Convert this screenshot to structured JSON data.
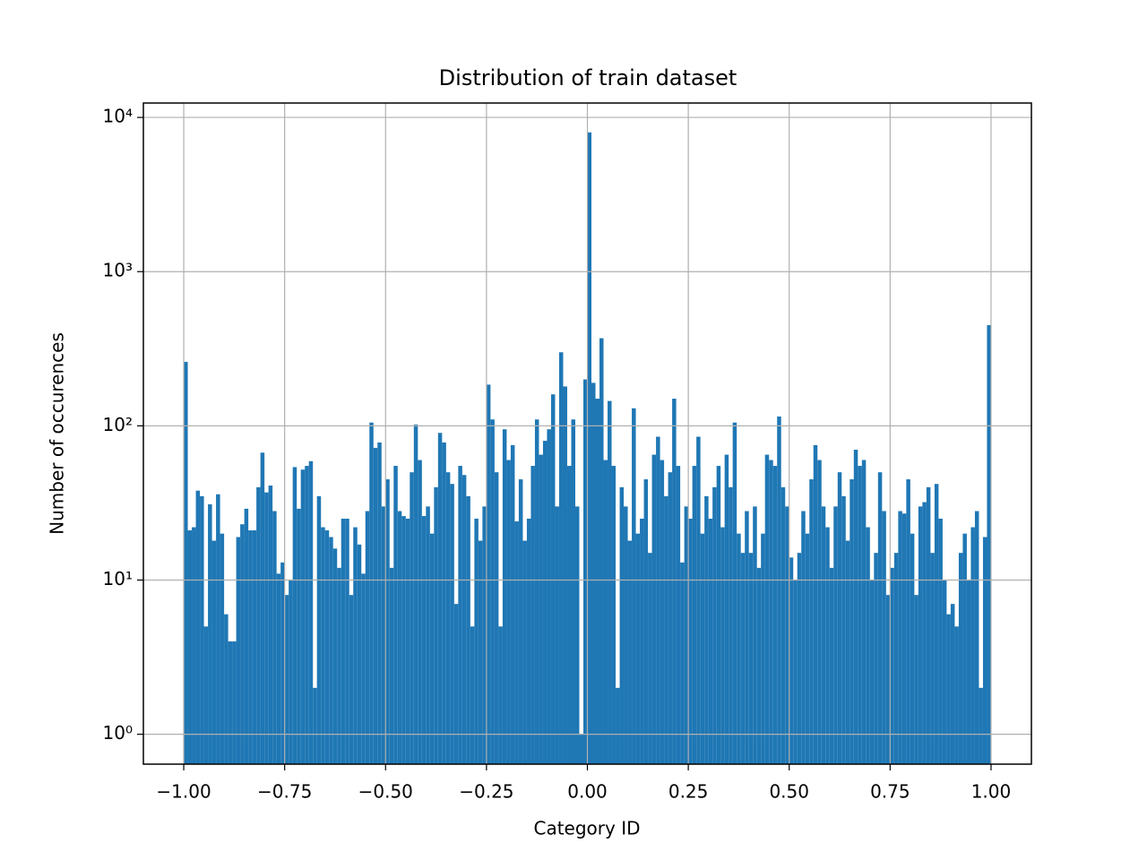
{
  "chart_data": {
    "type": "histogram",
    "title": "Distribution of train dataset",
    "xlabel": "Category ID",
    "ylabel": "Number of occurences",
    "color": "#1f77b4",
    "grid": true,
    "log_y": true,
    "xlim": [
      -1.1,
      1.1
    ],
    "ylim": [
      0.64,
      12400
    ],
    "xticks": [
      {
        "value": -1,
        "label": "−1.00"
      },
      {
        "value": -0.75,
        "label": "−0.75"
      },
      {
        "value": -0.5,
        "label": "−0.50"
      },
      {
        "value": -0.25,
        "label": "−0.25"
      },
      {
        "value": 0,
        "label": "0.00"
      },
      {
        "value": 0.25,
        "label": "0.25"
      },
      {
        "value": 0.5,
        "label": "0.50"
      },
      {
        "value": 0.75,
        "label": "0.75"
      },
      {
        "value": 1,
        "label": "1.00"
      }
    ],
    "yticks": [
      {
        "value": 1,
        "label": "10⁰"
      },
      {
        "value": 10,
        "label": "10¹"
      },
      {
        "value": 100,
        "label": "10²"
      },
      {
        "value": 1000,
        "label": "10³"
      },
      {
        "value": 10000,
        "label": "10⁴"
      }
    ],
    "bins": [
      -1,
      -0.99,
      -0.98,
      -0.97,
      -0.96,
      -0.95,
      -0.94,
      -0.93,
      -0.92,
      -0.91,
      -0.9,
      -0.89,
      -0.88,
      -0.87,
      -0.86,
      -0.85,
      -0.84,
      -0.83,
      -0.82,
      -0.81,
      -0.8,
      -0.79,
      -0.78,
      -0.77,
      -0.76,
      -0.75,
      -0.74,
      -0.73,
      -0.72,
      -0.71,
      -0.7,
      -0.69,
      -0.68,
      -0.67,
      -0.66,
      -0.65,
      -0.64,
      -0.63,
      -0.62,
      -0.61,
      -0.6,
      -0.59,
      -0.58,
      -0.57,
      -0.56,
      -0.55,
      -0.54,
      -0.53,
      -0.52,
      -0.51,
      -0.5,
      -0.49,
      -0.48,
      -0.47,
      -0.46,
      -0.45,
      -0.44,
      -0.43,
      -0.42,
      -0.41,
      -0.4,
      -0.39,
      -0.38,
      -0.37,
      -0.36,
      -0.35,
      -0.34,
      -0.33,
      -0.32,
      -0.31,
      -0.3,
      -0.29,
      -0.28,
      -0.27,
      -0.26,
      -0.25,
      -0.24,
      -0.23,
      -0.22,
      -0.21,
      -0.2,
      -0.19,
      -0.18,
      -0.17,
      -0.16,
      -0.15,
      -0.14,
      -0.13,
      -0.12,
      -0.11,
      -0.1,
      -0.09,
      -0.08,
      -0.07,
      -0.06,
      -0.05,
      -0.04,
      -0.03,
      -0.02,
      -0.01,
      0,
      0.01,
      0.02,
      0.03,
      0.04,
      0.05,
      0.06,
      0.07,
      0.08,
      0.09,
      0.1,
      0.11,
      0.12,
      0.13,
      0.14,
      0.15,
      0.16,
      0.17,
      0.18,
      0.19,
      0.2,
      0.21,
      0.22,
      0.23,
      0.24,
      0.25,
      0.26,
      0.27,
      0.28,
      0.29,
      0.3,
      0.31,
      0.32,
      0.33,
      0.34,
      0.35,
      0.36,
      0.37,
      0.38,
      0.39,
      0.4,
      0.41,
      0.42,
      0.43,
      0.44,
      0.45,
      0.46,
      0.47,
      0.48,
      0.49,
      0.5,
      0.51,
      0.52,
      0.53,
      0.54,
      0.55,
      0.56,
      0.57,
      0.58,
      0.59,
      0.6,
      0.61,
      0.62,
      0.63,
      0.64,
      0.65,
      0.66,
      0.67,
      0.68,
      0.69,
      0.7,
      0.71,
      0.72,
      0.73,
      0.74,
      0.75,
      0.76,
      0.77,
      0.78,
      0.79,
      0.8,
      0.81,
      0.82,
      0.83,
      0.84,
      0.85,
      0.86,
      0.87,
      0.88,
      0.89,
      0.9,
      0.91,
      0.92,
      0.93,
      0.94,
      0.95,
      0.96,
      0.97,
      0.98,
      0.99,
      1
    ],
    "values": [
      260,
      21,
      22,
      38,
      35,
      5,
      31,
      18,
      36,
      20,
      6,
      4,
      4,
      19,
      23,
      29,
      21,
      21,
      40,
      67,
      37,
      41,
      28,
      11,
      13,
      8,
      10,
      54,
      29,
      52,
      55,
      59,
      2,
      35,
      22,
      21,
      19,
      16,
      12,
      25,
      25,
      8,
      22,
      17,
      11,
      28,
      105,
      72,
      78,
      30,
      45,
      12,
      55,
      28,
      26,
      25,
      50,
      102,
      60,
      26,
      30,
      20,
      40,
      90,
      78,
      50,
      42,
      7,
      55,
      48,
      35,
      5,
      25,
      18,
      30,
      185,
      110,
      50,
      5,
      95,
      60,
      75,
      24,
      45,
      18,
      25,
      55,
      110,
      65,
      80,
      95,
      160,
      30,
      300,
      180,
      55,
      110,
      30,
      1,
      200,
      8000,
      190,
      150,
      370,
      60,
      145,
      55,
      2,
      40,
      30,
      18,
      130,
      20,
      25,
      45,
      15,
      65,
      85,
      60,
      35,
      50,
      150,
      55,
      13,
      30,
      25,
      55,
      85,
      20,
      35,
      25,
      40,
      55,
      22,
      65,
      40,
      105,
      20,
      15,
      28,
      15,
      30,
      12,
      20,
      65,
      60,
      55,
      115,
      40,
      30,
      14,
      10,
      15,
      28,
      20,
      45,
      75,
      60,
      30,
      22,
      12,
      30,
      50,
      35,
      18,
      45,
      70,
      55,
      60,
      22,
      10,
      15,
      50,
      28,
      8,
      12,
      15,
      28,
      27,
      45,
      20,
      8,
      30,
      32,
      40,
      15,
      42,
      25,
      10,
      6,
      7,
      5,
      15,
      20,
      10,
      22,
      28,
      2,
      19,
      450
    ]
  }
}
